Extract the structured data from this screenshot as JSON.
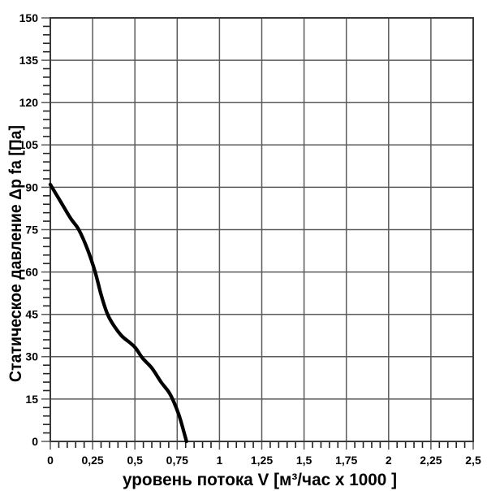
{
  "chart_data": {
    "type": "line",
    "title": "",
    "xlabel": "уровень потока  V [м³/час x 1000 ]",
    "ylabel": "Статическое давление  Δp fa [Па]",
    "xlim": [
      0,
      2.5
    ],
    "ylim": [
      0,
      150
    ],
    "grid": true,
    "legend_position": "none",
    "x_major_ticks": [
      0,
      0.25,
      0.5,
      0.75,
      1,
      1.25,
      1.5,
      1.75,
      2,
      2.25,
      2.5
    ],
    "x_tick_labels": [
      "0",
      "0,25",
      "0,5",
      "0,75",
      "1",
      "1,25",
      "1,5",
      "1,75",
      "2",
      "2,25",
      "2,5"
    ],
    "y_major_ticks": [
      0,
      15,
      30,
      45,
      60,
      75,
      90,
      105,
      120,
      135,
      150
    ],
    "y_tick_labels": [
      "0",
      "15",
      "30",
      "45",
      "60",
      "75",
      "90",
      "105",
      "120",
      "135",
      "150"
    ],
    "x_minor_step": 0.05,
    "y_minor_step": 3,
    "series": [
      {
        "name": "static-pressure-curve",
        "color": "#000000",
        "points": [
          [
            0,
            91
          ],
          [
            0.06,
            85
          ],
          [
            0.12,
            79
          ],
          [
            0.168,
            75
          ],
          [
            0.22,
            68
          ],
          [
            0.265,
            60
          ],
          [
            0.3,
            52
          ],
          [
            0.335,
            45.5
          ],
          [
            0.365,
            42
          ],
          [
            0.42,
            37.5
          ],
          [
            0.47,
            35
          ],
          [
            0.505,
            33
          ],
          [
            0.545,
            29.5
          ],
          [
            0.6,
            26
          ],
          [
            0.655,
            21
          ],
          [
            0.7,
            17.5
          ],
          [
            0.73,
            14
          ],
          [
            0.765,
            8.5
          ],
          [
            0.805,
            0
          ]
        ]
      }
    ],
    "colors": {
      "background": "#ffffff",
      "grid": "#5a5a5a",
      "frame": "#3a3a3a",
      "tick": "#222222",
      "text": "#000000",
      "curve": "#000000"
    }
  }
}
